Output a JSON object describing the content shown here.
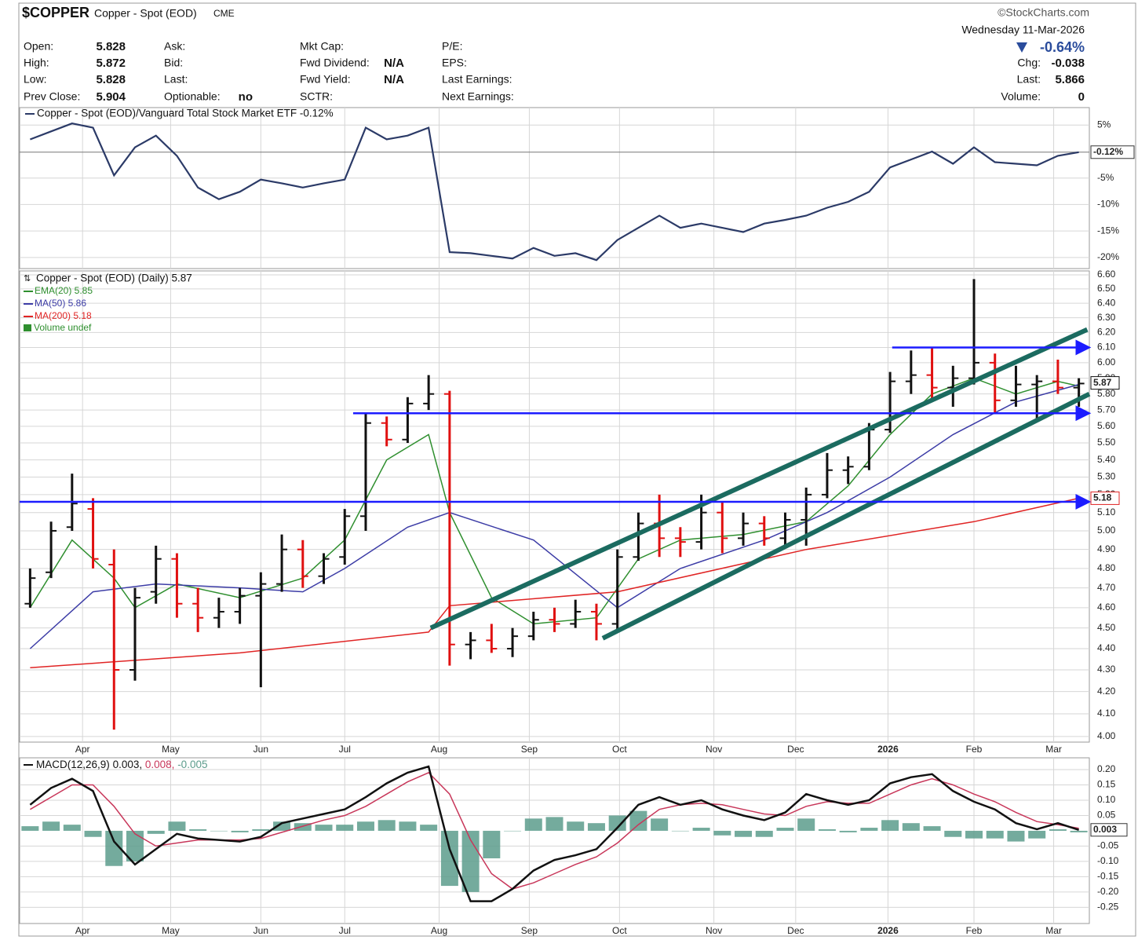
{
  "header": {
    "symbol": "$COPPER",
    "name": "Copper - Spot (EOD)",
    "exchange": "CME",
    "brand": "©StockCharts.com",
    "date": "Wednesday  11-Mar-2026",
    "change_pct": "-0.64%",
    "columns": [
      [
        {
          "label": "Open:",
          "value": 5.828
        },
        {
          "label": "High:",
          "value": 5.872
        },
        {
          "label": "Low:",
          "value": 5.828
        },
        {
          "label": "Prev Close:",
          "value": 5.904
        }
      ],
      [
        {
          "label": "Ask:"
        },
        {
          "label": "Bid:"
        },
        {
          "label": "Last:"
        },
        {
          "label": "Optionable:",
          "value": "no"
        }
      ],
      [
        {
          "label": "Mkt Cap:"
        },
        {
          "label": "Fwd Dividend:",
          "value": "N/A"
        },
        {
          "label": "Fwd Yield:",
          "value": "N/A"
        },
        {
          "label": "SCTR:"
        }
      ],
      [
        {
          "label": "P/E:"
        },
        {
          "label": "EPS:"
        },
        {
          "label": "Last Earnings:"
        },
        {
          "label": "Next Earnings:"
        }
      ]
    ],
    "right": [
      {
        "label": "Chg:",
        "value": -0.038
      },
      {
        "label": "Last:",
        "value": 5.866
      },
      {
        "label": "Volume:",
        "value": 0
      }
    ]
  },
  "chart_data": [
    {
      "type": "line",
      "title": "Copper - Spot (EOD)/Vanguard Total Stock Market ETF -0.12%",
      "x": [
        0,
        1,
        2,
        3,
        4,
        5,
        6,
        7,
        8,
        9,
        10,
        11,
        12,
        13,
        14,
        15,
        16,
        17,
        18,
        19,
        20,
        21,
        22,
        23,
        24,
        25,
        26,
        27,
        28,
        29,
        30,
        31,
        32,
        33,
        34,
        35,
        36,
        37,
        38,
        39,
        40,
        41,
        42,
        43,
        44,
        45,
        46,
        47,
        48,
        49,
        50
      ],
      "xlim": [
        -0.5,
        50.5
      ],
      "ylim": [
        -22.1,
        8.3
      ],
      "yticks": [
        {
          "value": 5,
          "label": "5%"
        },
        {
          "value": -5,
          "label": "-5%"
        },
        {
          "value": -10,
          "label": "-10%"
        },
        {
          "value": -15,
          "label": "-15%"
        },
        {
          "value": -20,
          "label": "-20%"
        }
      ],
      "grid": true,
      "series": [
        {
          "name": "Copper - Spot (EOD)/Vanguard Total Stock Market ETF",
          "color": "#2b3a67",
          "values": [
            2.3,
            3.8,
            5.3,
            4.5,
            -4.5,
            0.8,
            3,
            -0.8,
            -6.8,
            -9,
            -7.6,
            -5.3,
            -6,
            -6.8,
            -6,
            -5.3,
            4.5,
            2.3,
            3,
            4.5,
            -19,
            -19.2,
            -19.7,
            -20.2,
            -18.2,
            -19.7,
            -19.2,
            -20.5,
            -16.7,
            -14.4,
            -12.1,
            -14.4,
            -13.6,
            -14.4,
            -15.2,
            -13.6,
            -12.9,
            -12.1,
            -10.6,
            -9.5,
            -7.6,
            -3,
            -1.5,
            0,
            -2.3,
            0.8,
            -2,
            -2.3,
            -2.6,
            -0.8,
            -0.12
          ]
        }
      ],
      "last_label": {
        "value": -0.12,
        "label": "-0.12%"
      }
    },
    {
      "type": "ohlc",
      "log": true,
      "grid": true,
      "x": [
        0,
        1,
        2,
        3,
        4,
        5,
        6,
        7,
        8,
        9,
        10,
        11,
        12,
        13,
        14,
        15,
        16,
        17,
        18,
        19,
        20,
        21,
        22,
        23,
        24,
        25,
        26,
        27,
        28,
        29,
        30,
        31,
        32,
        33,
        34,
        35,
        36,
        37,
        38,
        39,
        40,
        41,
        42,
        43,
        44,
        45,
        46,
        47,
        48,
        49,
        50
      ],
      "xlim": [
        -0.5,
        50.5
      ],
      "ylim": [
        3.976,
        6.628
      ],
      "xticks": [
        {
          "value": 2.5,
          "label": "Apr"
        },
        {
          "value": 6.7,
          "label": "May"
        },
        {
          "value": 11,
          "label": "Jun"
        },
        {
          "value": 15,
          "label": "Jul"
        },
        {
          "value": 19.5,
          "label": "Aug"
        },
        {
          "value": 23.8,
          "label": "Sep"
        },
        {
          "value": 28.1,
          "label": "Oct"
        },
        {
          "value": 32.6,
          "label": "Nov"
        },
        {
          "value": 36.5,
          "label": "Dec"
        },
        {
          "value": 40.9,
          "label": "2026"
        },
        {
          "value": 45,
          "label": "Feb"
        },
        {
          "value": 48.8,
          "label": "Mar"
        }
      ],
      "yticks": [
        {
          "value": 4,
          "label": "4.00"
        },
        {
          "value": 4.1,
          "label": "4.10"
        },
        {
          "value": 4.2,
          "label": "4.20"
        },
        {
          "value": 4.3,
          "label": "4.30"
        },
        {
          "value": 4.4,
          "label": "4.40"
        },
        {
          "value": 4.5,
          "label": "4.50"
        },
        {
          "value": 4.6,
          "label": "4.60"
        },
        {
          "value": 4.7,
          "label": "4.70"
        },
        {
          "value": 4.8,
          "label": "4.80"
        },
        {
          "value": 4.9,
          "label": "4.90"
        },
        {
          "value": 5,
          "label": "5.00"
        },
        {
          "value": 5.1,
          "label": "5.10"
        },
        {
          "value": 5.2,
          "label": "5.20"
        },
        {
          "value": 5.3,
          "label": "5.30"
        },
        {
          "value": 5.4,
          "label": "5.40"
        },
        {
          "value": 5.5,
          "label": "5.50"
        },
        {
          "value": 5.6,
          "label": "5.60"
        },
        {
          "value": 5.7,
          "label": "5.70"
        },
        {
          "value": 5.8,
          "label": "5.80"
        },
        {
          "value": 5.9,
          "label": "5.90"
        },
        {
          "value": 6,
          "label": "6.00"
        },
        {
          "value": 6.1,
          "label": "6.10"
        },
        {
          "value": 6.2,
          "label": "6.20"
        },
        {
          "value": 6.3,
          "label": "6.30"
        },
        {
          "value": 6.4,
          "label": "6.40"
        },
        {
          "value": 6.5,
          "label": "6.50"
        },
        {
          "value": 6.6,
          "label": "6.60"
        }
      ],
      "ohlc": {
        "name": "Copper - Spot (EOD) (Daily) 5.87",
        "up_color": "#111111",
        "down_color": "#e01010",
        "open": [
          4.62,
          4.78,
          5.02,
          5.12,
          4.82,
          4.3,
          4.68,
          4.85,
          4.62,
          4.55,
          4.58,
          4.66,
          4.72,
          4.9,
          4.76,
          4.86,
          5.08,
          5.62,
          5.52,
          5.74,
          5.8,
          4.42,
          4.44,
          4.4,
          4.46,
          4.54,
          4.52,
          4.58,
          4.52,
          4.86,
          5.04,
          4.96,
          4.94,
          5.1,
          4.96,
          5.04,
          4.96,
          5.06,
          5.2,
          5.34,
          5.36,
          5.58,
          5.88,
          5.92,
          5.84,
          5.9,
          6.0,
          5.76,
          5.86,
          5.88,
          5.84
        ],
        "high": [
          4.8,
          5.05,
          5.32,
          5.18,
          4.9,
          4.7,
          4.92,
          4.88,
          4.7,
          4.65,
          4.7,
          4.78,
          4.98,
          4.95,
          4.88,
          5.12,
          5.68,
          5.66,
          5.78,
          5.92,
          5.82,
          4.48,
          4.52,
          4.5,
          4.58,
          4.6,
          4.64,
          4.62,
          4.9,
          5.1,
          5.2,
          5.02,
          5.2,
          5.16,
          5.1,
          5.08,
          5.1,
          5.24,
          5.44,
          5.42,
          5.62,
          5.94,
          6.08,
          6.1,
          5.98,
          6.57,
          6.06,
          5.98,
          5.92,
          6.02,
          5.9
        ],
        "low": [
          4.6,
          4.75,
          5.0,
          4.8,
          4.03,
          4.25,
          4.62,
          4.55,
          4.48,
          4.5,
          4.52,
          4.22,
          4.68,
          4.7,
          4.72,
          4.82,
          5.0,
          5.48,
          5.5,
          5.7,
          4.32,
          4.35,
          4.38,
          4.36,
          4.44,
          4.48,
          4.5,
          4.44,
          4.48,
          4.84,
          4.86,
          4.86,
          4.9,
          4.88,
          4.92,
          4.92,
          4.92,
          4.92,
          5.18,
          5.26,
          5.34,
          5.56,
          5.8,
          5.76,
          5.72,
          5.86,
          5.68,
          5.72,
          5.64,
          5.8,
          5.72
        ],
        "close": [
          4.75,
          5.0,
          5.15,
          4.85,
          4.3,
          4.65,
          4.85,
          4.62,
          4.55,
          4.58,
          4.66,
          4.72,
          4.9,
          4.76,
          4.85,
          5.08,
          5.62,
          5.52,
          5.74,
          5.8,
          4.42,
          4.44,
          4.4,
          4.46,
          4.54,
          4.52,
          4.58,
          4.52,
          4.86,
          5.04,
          4.96,
          4.94,
          5.1,
          4.96,
          5.04,
          4.96,
          5.06,
          5.2,
          5.34,
          5.36,
          5.58,
          5.88,
          5.92,
          5.84,
          5.9,
          6.0,
          5.76,
          5.86,
          5.88,
          5.84,
          5.866
        ]
      },
      "series": [
        {
          "name": "EMA(20) 5.85",
          "color": "#2f8f2f",
          "x": [
            0,
            2,
            4,
            5,
            7,
            10,
            13,
            15,
            17,
            19,
            20,
            22,
            24,
            27,
            29,
            31,
            34,
            37,
            39,
            41,
            43,
            45,
            47,
            49,
            50
          ],
          "values": [
            4.6,
            4.95,
            4.75,
            4.6,
            4.72,
            4.65,
            4.75,
            4.95,
            5.4,
            5.55,
            5.1,
            4.65,
            4.52,
            4.55,
            4.85,
            4.95,
            4.98,
            5.05,
            5.25,
            5.55,
            5.8,
            5.9,
            5.8,
            5.88,
            5.85
          ]
        },
        {
          "name": "MA(50) 5.86",
          "color": "#3c3ca6",
          "x": [
            0,
            3,
            6,
            10,
            13,
            15,
            18,
            20,
            24,
            28,
            31,
            35,
            38,
            41,
            44,
            47,
            50
          ],
          "values": [
            4.4,
            4.68,
            4.72,
            4.7,
            4.68,
            4.8,
            5.02,
            5.1,
            4.95,
            4.6,
            4.8,
            4.95,
            5.1,
            5.3,
            5.55,
            5.75,
            5.86
          ]
        },
        {
          "name": "MA(200) 5.18",
          "color": "#e02424",
          "x": [
            0,
            10,
            19,
            20,
            28,
            37,
            45,
            50
          ],
          "values": [
            4.31,
            4.38,
            4.48,
            4.61,
            4.68,
            4.9,
            5.05,
            5.18
          ]
        }
      ],
      "legend_extra": "Volume undef",
      "hlines": [
        {
          "x": [
            -0.5,
            50.4
          ],
          "y": 5.16
        },
        {
          "x": [
            15.4,
            50.4
          ],
          "y": 5.68
        },
        {
          "x": [
            41.1,
            50.4
          ],
          "y": 6.1
        }
      ],
      "trendlines": [
        {
          "x": [
            19.1,
            50.4
          ],
          "y": [
            4.5,
            6.22
          ]
        },
        {
          "x": [
            27.3,
            50.5
          ],
          "y": [
            4.45,
            5.8
          ]
        }
      ],
      "price_labels": [
        {
          "value": 5.87,
          "label": "5.87"
        },
        {
          "value": 5.18,
          "label": "5.18"
        }
      ]
    },
    {
      "type": "macd",
      "grid": true,
      "x": [
        0,
        1,
        2,
        3,
        4,
        5,
        6,
        7,
        8,
        9,
        10,
        11,
        12,
        13,
        14,
        15,
        16,
        17,
        18,
        19,
        20,
        21,
        22,
        23,
        24,
        25,
        26,
        27,
        28,
        29,
        30,
        31,
        32,
        33,
        34,
        35,
        36,
        37,
        38,
        39,
        40,
        41,
        42,
        43,
        44,
        45,
        46,
        47,
        48,
        49,
        50
      ],
      "xlim": [
        -0.5,
        50.5
      ],
      "ylim": [
        -0.303,
        0.2385
      ],
      "xticks": [
        {
          "value": 2.5,
          "label": "Apr"
        },
        {
          "value": 6.7,
          "label": "May"
        },
        {
          "value": 11,
          "label": "Jun"
        },
        {
          "value": 15,
          "label": "Jul"
        },
        {
          "value": 19.5,
          "label": "Aug"
        },
        {
          "value": 23.8,
          "label": "Sep"
        },
        {
          "value": 28.1,
          "label": "Oct"
        },
        {
          "value": 32.6,
          "label": "Nov"
        },
        {
          "value": 36.5,
          "label": "Dec"
        },
        {
          "value": 40.9,
          "label": "2026"
        },
        {
          "value": 45,
          "label": "Feb"
        },
        {
          "value": 48.8,
          "label": "Mar"
        }
      ],
      "yticks": [
        {
          "value": 0.2,
          "label": "0.20"
        },
        {
          "value": 0.15,
          "label": "0.15"
        },
        {
          "value": 0.1,
          "label": "0.10"
        },
        {
          "value": 0.05,
          "label": "0.05"
        },
        {
          "value": -0.05,
          "label": "-0.05"
        },
        {
          "value": -0.1,
          "label": "-0.10"
        },
        {
          "value": -0.15,
          "label": "-0.15"
        },
        {
          "value": -0.2,
          "label": "-0.20"
        },
        {
          "value": -0.25,
          "label": "-0.25"
        }
      ],
      "legend": {
        "label": "MACD(12,26,9)",
        "values": [
          "0.003,",
          "0.008,",
          "-0.005"
        ]
      },
      "series": [
        {
          "name": "MACD",
          "color": "#111111",
          "values": [
            0.085,
            0.14,
            0.17,
            0.13,
            -0.035,
            -0.11,
            -0.06,
            -0.01,
            -0.025,
            -0.03,
            -0.035,
            -0.02,
            0.025,
            0.04,
            0.055,
            0.07,
            0.11,
            0.155,
            0.19,
            0.21,
            -0.06,
            -0.23,
            -0.23,
            -0.19,
            -0.13,
            -0.095,
            -0.08,
            -0.06,
            0.01,
            0.085,
            0.11,
            0.085,
            0.1,
            0.07,
            0.05,
            0.035,
            0.06,
            0.12,
            0.1,
            0.085,
            0.1,
            0.155,
            0.175,
            0.185,
            0.13,
            0.095,
            0.07,
            0.025,
            0.005,
            0.025,
            0.003
          ]
        },
        {
          "name": "Signal",
          "color": "#c8375a",
          "values": [
            0.07,
            0.11,
            0.15,
            0.15,
            0.08,
            -0.01,
            -0.05,
            -0.04,
            -0.03,
            -0.03,
            -0.03,
            -0.025,
            -0.005,
            0.015,
            0.035,
            0.05,
            0.08,
            0.12,
            0.16,
            0.19,
            0.12,
            -0.03,
            -0.14,
            -0.19,
            -0.17,
            -0.14,
            -0.11,
            -0.085,
            -0.04,
            0.02,
            0.07,
            0.085,
            0.09,
            0.085,
            0.07,
            0.055,
            0.05,
            0.08,
            0.095,
            0.09,
            0.09,
            0.12,
            0.15,
            0.17,
            0.15,
            0.12,
            0.095,
            0.06,
            0.03,
            0.02,
            0.008
          ]
        },
        {
          "name": "Histogram",
          "color": "#5c9c8c",
          "values": [
            0.015,
            0.03,
            0.02,
            -0.02,
            -0.115,
            -0.1,
            -0.01,
            0.03,
            0.005,
            0,
            -0.005,
            0.005,
            0.03,
            0.025,
            0.02,
            0.02,
            0.03,
            0.035,
            0.03,
            0.02,
            -0.18,
            -0.2,
            -0.09,
            0,
            0.04,
            0.045,
            0.03,
            0.025,
            0.05,
            0.065,
            0.04,
            0,
            0.01,
            -0.015,
            -0.02,
            -0.02,
            0.01,
            0.04,
            0.005,
            -0.005,
            0.01,
            0.035,
            0.025,
            0.015,
            -0.02,
            -0.025,
            -0.025,
            -0.035,
            -0.025,
            0.005,
            -0.005
          ]
        }
      ],
      "last_label": {
        "value": 0.003,
        "label": "0.003"
      }
    }
  ]
}
